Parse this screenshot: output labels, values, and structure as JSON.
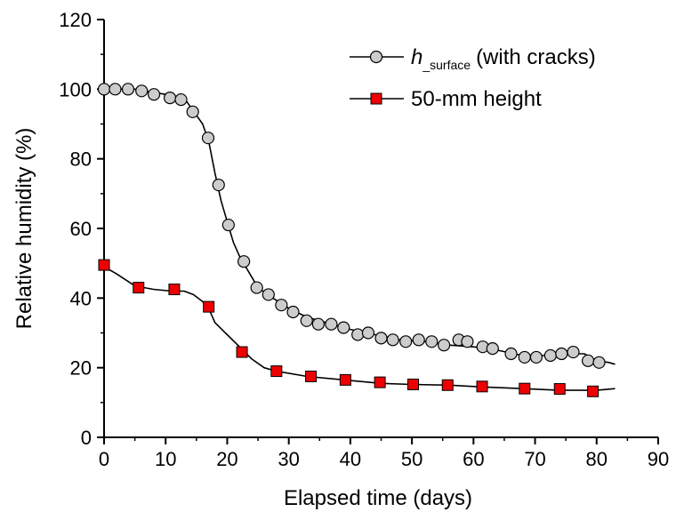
{
  "chart_data": {
    "type": "line",
    "xlabel": "Elapsed time (days)",
    "ylabel": "Relative humidity (%)",
    "xlim": [
      0,
      90
    ],
    "ylim": [
      0,
      120
    ],
    "xticks": [
      "0",
      "10",
      "20",
      "30",
      "40",
      "50",
      "60",
      "70",
      "80",
      "90"
    ],
    "yticks": [
      "0",
      "20",
      "40",
      "60",
      "80",
      "100",
      "120"
    ],
    "grid": false,
    "legend_position": "top-right",
    "series": [
      {
        "name_main": "h",
        "name_sub": "_surface",
        "name_rest": "(with cracks)",
        "color": "#000000",
        "marker": "circle",
        "marker_fill": "#cccccc",
        "line": [
          [
            0,
            100
          ],
          [
            5,
            100
          ],
          [
            10,
            98.5
          ],
          [
            13,
            97.5
          ],
          [
            14,
            95
          ],
          [
            16,
            90
          ],
          [
            17,
            85
          ],
          [
            18,
            76
          ],
          [
            19,
            68
          ],
          [
            20,
            62
          ],
          [
            21,
            56
          ],
          [
            22,
            52
          ],
          [
            23,
            49
          ],
          [
            24,
            46
          ],
          [
            25,
            43
          ],
          [
            27,
            40.5
          ],
          [
            30,
            37
          ],
          [
            33,
            34.5
          ],
          [
            36,
            33
          ],
          [
            40,
            31
          ],
          [
            44,
            29.5
          ],
          [
            48,
            28
          ],
          [
            52,
            27.5
          ],
          [
            56,
            26.5
          ],
          [
            60,
            26
          ],
          [
            64,
            25
          ],
          [
            68,
            23.5
          ],
          [
            72,
            23.5
          ],
          [
            76,
            24
          ],
          [
            78,
            24
          ],
          [
            80,
            22
          ],
          [
            82,
            21.5
          ],
          [
            83,
            21
          ]
        ],
        "markers": [
          [
            0,
            100
          ],
          [
            1.8,
            100
          ],
          [
            3.9,
            100
          ],
          [
            6.1,
            99.5
          ],
          [
            8.1,
            98.5
          ],
          [
            10.7,
            97.5
          ],
          [
            12.5,
            97
          ],
          [
            14.4,
            93.5
          ],
          [
            16.9,
            86
          ],
          [
            18.6,
            72.5
          ],
          [
            20.2,
            61
          ],
          [
            22.7,
            50.5
          ],
          [
            24.8,
            43
          ],
          [
            26.7,
            41
          ],
          [
            28.8,
            38
          ],
          [
            30.7,
            36
          ],
          [
            32.9,
            33.5
          ],
          [
            34.8,
            32.5
          ],
          [
            36.9,
            32.5
          ],
          [
            38.9,
            31.5
          ],
          [
            41.2,
            29.5
          ],
          [
            42.9,
            30
          ],
          [
            45,
            28.5
          ],
          [
            46.9,
            28
          ],
          [
            49,
            27.5
          ],
          [
            51.1,
            28
          ],
          [
            53.2,
            27.5
          ],
          [
            55.2,
            26.5
          ],
          [
            57.6,
            28
          ],
          [
            59,
            27.5
          ],
          [
            61.5,
            26
          ],
          [
            63.1,
            25.5
          ],
          [
            66.1,
            24
          ],
          [
            68.3,
            23
          ],
          [
            70.2,
            23
          ],
          [
            72.5,
            23.5
          ],
          [
            74.3,
            24
          ],
          [
            76.2,
            24.5
          ],
          [
            78.6,
            22
          ],
          [
            80.4,
            21.5
          ]
        ]
      },
      {
        "name": "50-mm height",
        "color": "#000000",
        "marker": "square",
        "marker_fill": "#ee0000",
        "line": [
          [
            0,
            49
          ],
          [
            2,
            47
          ],
          [
            5,
            43.5
          ],
          [
            8,
            42.5
          ],
          [
            11,
            42
          ],
          [
            13,
            42
          ],
          [
            14.5,
            41
          ],
          [
            16,
            39
          ],
          [
            17,
            37
          ],
          [
            18,
            33
          ],
          [
            20,
            29.5
          ],
          [
            22,
            26
          ],
          [
            24,
            22.5
          ],
          [
            26,
            20
          ],
          [
            28,
            19
          ],
          [
            33,
            17.5
          ],
          [
            39,
            16.5
          ],
          [
            45,
            15.5
          ],
          [
            50,
            15.2
          ],
          [
            56,
            15
          ],
          [
            61,
            14.5
          ],
          [
            68,
            14
          ],
          [
            74,
            13.5
          ],
          [
            80,
            13.5
          ],
          [
            83,
            14
          ]
        ],
        "markers": [
          [
            0,
            49.5
          ],
          [
            5.6,
            43
          ],
          [
            11.4,
            42.5
          ],
          [
            17,
            37.5
          ],
          [
            22.4,
            24.5
          ],
          [
            28,
            19
          ],
          [
            33.6,
            17.5
          ],
          [
            39.2,
            16.5
          ],
          [
            44.8,
            15.8
          ],
          [
            50.2,
            15.2
          ],
          [
            55.8,
            15
          ],
          [
            61.4,
            14.6
          ],
          [
            68.3,
            14
          ],
          [
            74,
            13.9
          ],
          [
            79.4,
            13.2
          ]
        ]
      }
    ]
  }
}
